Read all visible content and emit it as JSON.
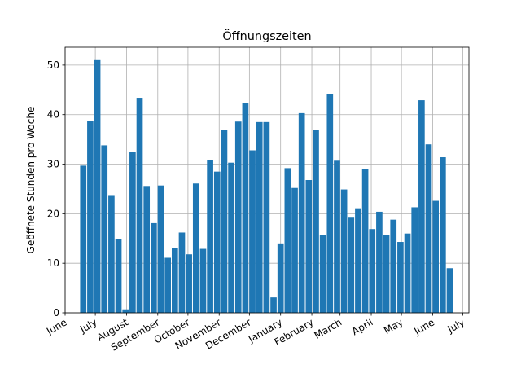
{
  "chart_data": {
    "type": "bar",
    "title": "Öffnungszeiten",
    "xlabel": "",
    "ylabel": "Geöffnete Stunden pro Woche",
    "ylim": [
      0,
      53.6
    ],
    "yticks": [
      0,
      10,
      20,
      30,
      40,
      50
    ],
    "xlim": [
      "2017-06-01",
      "2018-07-07"
    ],
    "x_tick_labels": [
      {
        "label": "June",
        "date": "2017-06-01"
      },
      {
        "label": "July",
        "date": "2017-07-01"
      },
      {
        "label": "August",
        "date": "2017-08-01"
      },
      {
        "label": "September",
        "date": "2017-09-01"
      },
      {
        "label": "October",
        "date": "2017-10-01"
      },
      {
        "label": "November",
        "date": "2017-11-01"
      },
      {
        "label": "December",
        "date": "2017-12-01"
      },
      {
        "label": "January",
        "date": "2018-01-01"
      },
      {
        "label": "February",
        "date": "2018-02-01"
      },
      {
        "label": "March",
        "date": "2018-03-01"
      },
      {
        "label": "April",
        "date": "2018-04-01"
      },
      {
        "label": "May",
        "date": "2018-05-01"
      },
      {
        "label": "June",
        "date": "2018-06-01"
      },
      {
        "label": "July",
        "date": "2018-07-01"
      }
    ],
    "grid": true,
    "bar_color": "#1f77b4",
    "series": [
      {
        "x": [
          "2017-06-19",
          "2017-06-26",
          "2017-07-03",
          "2017-07-10",
          "2017-07-17",
          "2017-07-24",
          "2017-07-31",
          "2017-08-07",
          "2017-08-14",
          "2017-08-21",
          "2017-08-28",
          "2017-09-04",
          "2017-09-11",
          "2017-09-18",
          "2017-09-25",
          "2017-10-02",
          "2017-10-09",
          "2017-10-16",
          "2017-10-23",
          "2017-10-30",
          "2017-11-06",
          "2017-11-13",
          "2017-11-20",
          "2017-11-27",
          "2017-12-04",
          "2017-12-11",
          "2017-12-18",
          "2017-12-25",
          "2018-01-01",
          "2018-01-08",
          "2018-01-15",
          "2018-01-22",
          "2018-01-29",
          "2018-02-05",
          "2018-02-12",
          "2018-02-19",
          "2018-02-26",
          "2018-03-05",
          "2018-03-12",
          "2018-03-19",
          "2018-03-26",
          "2018-04-02",
          "2018-04-09",
          "2018-04-16",
          "2018-04-23",
          "2018-04-30",
          "2018-05-07",
          "2018-05-14",
          "2018-05-21",
          "2018-05-28",
          "2018-06-04",
          "2018-06-11",
          "2018-06-18",
          "2018-06-25"
        ],
        "values": [
          29.7,
          38.7,
          51.0,
          33.8,
          23.6,
          14.9,
          0.7,
          32.4,
          43.4,
          25.6,
          18.1,
          25.7,
          11.1,
          13.0,
          16.2,
          11.8,
          26.1,
          12.9,
          30.8,
          28.5,
          36.9,
          30.3,
          38.6,
          42.3,
          32.8,
          38.5,
          38.5,
          3.1,
          14.0,
          29.2,
          25.2,
          40.3,
          26.8,
          36.9,
          15.7,
          44.1,
          30.7,
          24.9,
          19.2,
          21.1,
          29.1,
          16.9,
          20.4,
          15.7,
          18.8,
          14.3,
          16.0,
          21.3,
          42.9,
          34.0,
          22.6,
          31.4,
          9.0,
          0
        ]
      }
    ]
  }
}
